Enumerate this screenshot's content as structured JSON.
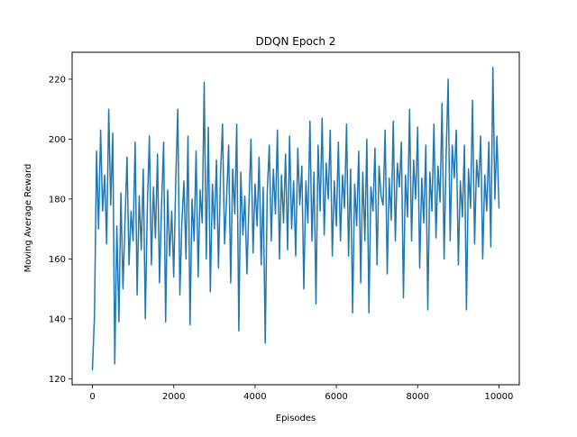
{
  "chart_data": {
    "type": "line",
    "title": "DDQN Epoch 2",
    "xlabel": "Episodes",
    "ylabel": "Moving Average Reward",
    "xlim": [
      -500,
      10500
    ],
    "ylim": [
      118,
      229
    ],
    "xticks": [
      0,
      2000,
      4000,
      6000,
      8000,
      10000
    ],
    "yticks": [
      120,
      140,
      160,
      180,
      200,
      220
    ],
    "grid": false,
    "series": [
      {
        "color": "#1f77b4",
        "x": [
          0,
          50,
          100,
          150,
          200,
          250,
          300,
          350,
          400,
          450,
          500,
          550,
          600,
          650,
          700,
          750,
          800,
          850,
          900,
          950,
          1000,
          1050,
          1100,
          1150,
          1200,
          1250,
          1300,
          1350,
          1400,
          1450,
          1500,
          1550,
          1600,
          1650,
          1700,
          1750,
          1800,
          1850,
          1900,
          1950,
          2000,
          2050,
          2100,
          2150,
          2200,
          2250,
          2300,
          2350,
          2400,
          2450,
          2500,
          2550,
          2600,
          2650,
          2700,
          2750,
          2800,
          2850,
          2900,
          2950,
          3000,
          3050,
          3100,
          3150,
          3200,
          3250,
          3300,
          3350,
          3400,
          3450,
          3500,
          3550,
          3600,
          3650,
          3700,
          3750,
          3800,
          3850,
          3900,
          3950,
          4000,
          4050,
          4100,
          4150,
          4200,
          4250,
          4300,
          4350,
          4400,
          4450,
          4500,
          4550,
          4600,
          4650,
          4700,
          4750,
          4800,
          4850,
          4900,
          4950,
          5000,
          5050,
          5100,
          5150,
          5200,
          5250,
          5300,
          5350,
          5400,
          5450,
          5500,
          5550,
          5600,
          5650,
          5700,
          5750,
          5800,
          5850,
          5900,
          5950,
          6000,
          6050,
          6100,
          6150,
          6200,
          6250,
          6300,
          6350,
          6400,
          6450,
          6500,
          6550,
          6600,
          6650,
          6700,
          6750,
          6800,
          6850,
          6900,
          6950,
          7000,
          7050,
          7100,
          7150,
          7200,
          7250,
          7300,
          7350,
          7400,
          7450,
          7500,
          7550,
          7600,
          7650,
          7700,
          7750,
          7800,
          7850,
          7900,
          7950,
          8000,
          8050,
          8100,
          8150,
          8200,
          8250,
          8300,
          8350,
          8400,
          8450,
          8500,
          8550,
          8600,
          8650,
          8700,
          8750,
          8800,
          8850,
          8900,
          8950,
          9000,
          9050,
          9100,
          9150,
          9200,
          9250,
          9300,
          9350,
          9400,
          9450,
          9500,
          9550,
          9600,
          9650,
          9700,
          9750,
          9800,
          9850,
          9900,
          9950,
          10000
        ],
        "y": [
          123,
          141,
          196,
          170,
          203,
          176,
          188,
          165,
          210,
          178,
          202,
          125,
          171,
          139,
          182,
          150,
          172,
          194,
          158,
          176,
          166,
          199,
          148,
          181,
          163,
          190,
          140,
          177,
          201,
          158,
          184,
          167,
          195,
          152,
          178,
          199,
          139,
          183,
          161,
          176,
          154,
          187,
          210,
          148,
          172,
          186,
          160,
          201,
          138,
          180,
          166,
          196,
          154,
          183,
          172,
          219,
          160,
          204,
          149,
          185,
          170,
          193,
          157,
          188,
          205,
          165,
          180,
          198,
          152,
          190,
          175,
          205,
          136,
          189,
          168,
          181,
          155,
          178,
          200,
          162,
          185,
          171,
          194,
          158,
          184,
          132,
          182,
          198,
          166,
          190,
          175,
          203,
          160,
          188,
          172,
          195,
          163,
          201,
          170,
          186,
          161,
          197,
          178,
          191,
          150,
          186,
          172,
          206,
          166,
          189,
          145,
          198,
          176,
          207,
          168,
          192,
          180,
          203,
          161,
          186,
          171,
          199,
          166,
          188,
          177,
          205,
          161,
          190,
          142,
          185,
          171,
          196,
          152,
          189,
          166,
          200,
          142,
          184,
          176,
          197,
          158,
          191,
          181,
          178,
          203,
          155,
          187,
          173,
          206,
          166,
          192,
          184,
          199,
          147,
          188,
          174,
          210,
          166,
          193,
          180,
          204,
          157,
          187,
          172,
          198,
          143,
          189,
          176,
          205,
          167,
          191,
          179,
          212,
          160,
          194,
          220,
          166,
          198,
          187,
          203,
          158,
          186,
          174,
          198,
          143,
          190,
          177,
          213,
          165,
          193,
          184,
          201,
          160,
          188,
          176,
          199,
          164,
          224,
          180,
          201,
          177
        ]
      }
    ]
  }
}
